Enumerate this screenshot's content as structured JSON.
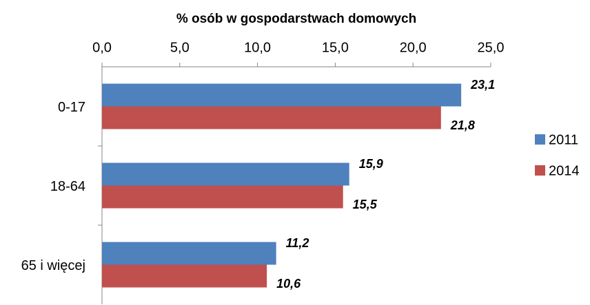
{
  "chart_data": {
    "type": "bar",
    "orientation": "horizontal",
    "x_axis_label": "% osób w gospodarstwach domowych",
    "categories": [
      "0-17",
      "18-64",
      "65 i więcej"
    ],
    "series": [
      {
        "name": "2011",
        "color": "#4f81bd",
        "values": [
          23.1,
          15.9,
          11.2
        ],
        "value_labels": [
          "23,1",
          "15,9",
          "11,2"
        ]
      },
      {
        "name": "2014",
        "color": "#c0504d",
        "values": [
          21.8,
          15.5,
          10.6
        ],
        "value_labels": [
          "21,8",
          "15,5",
          "10,6"
        ]
      }
    ],
    "xlim": [
      0,
      25
    ],
    "xticks": [
      {
        "value": 0,
        "label": "0,0"
      },
      {
        "value": 5,
        "label": "5,0"
      },
      {
        "value": 10,
        "label": "10,0"
      },
      {
        "value": 15,
        "label": "15,0"
      },
      {
        "value": 20,
        "label": "20,0"
      },
      {
        "value": 25,
        "label": "25,0"
      }
    ],
    "grid": false,
    "legend": "right"
  }
}
